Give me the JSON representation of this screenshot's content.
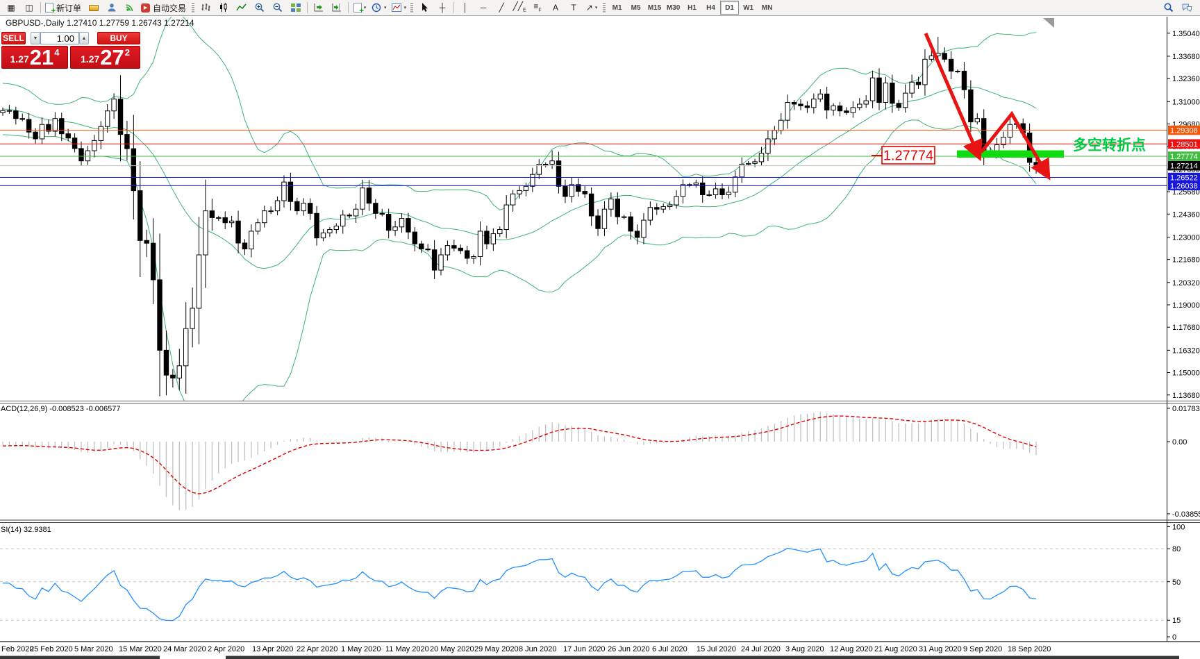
{
  "toolbar": {
    "new_order_label": "新订单",
    "autotrading_label": "自动交易",
    "timeframes": [
      "M1",
      "M5",
      "M15",
      "M30",
      "H1",
      "H4",
      "D1",
      "W1",
      "MN"
    ],
    "active_timeframe": "D1"
  },
  "trade_panel": {
    "symbol_title": "GBPUSD-,Daily  1.27410 1.27759 1.26743 1.27214",
    "sell_label": "SELL",
    "buy_label": "BUY",
    "volume": "1.00",
    "sell_price_prefix": "1.27",
    "sell_price_big": "21",
    "sell_price_sup": "4",
    "buy_price_prefix": "1.27",
    "buy_price_big": "27",
    "buy_price_sup": "2"
  },
  "price_axis": {
    "gridline_labels": [
      "1.35040",
      "1.33680",
      "1.32360",
      "1.31000",
      "1.29680",
      "1.28360",
      "1.27000",
      "1.25680",
      "1.24360",
      "1.23000",
      "1.21680",
      "1.20320",
      "1.19000",
      "1.17680",
      "1.16320",
      "1.15000",
      "1.13680"
    ],
    "plates": [
      {
        "text": "1.29308",
        "bg": "#f4560a"
      },
      {
        "text": "1.28501",
        "bg": "#ee1212"
      },
      {
        "text": "1.27774",
        "bg": "#41bc41"
      },
      {
        "text": "1.27214",
        "bg": "#000000"
      },
      {
        "text": "1.26522",
        "bg": "#1717d9"
      },
      {
        "text": "1.26038",
        "bg": "#1717d9"
      }
    ]
  },
  "hlines": [
    {
      "price": 1.29308,
      "color": "#f4560a"
    },
    {
      "price": 1.28501,
      "color": "#ee1212"
    },
    {
      "price": 1.27774,
      "color": "#41bc41"
    },
    {
      "price": 1.27214,
      "color": "#c6c6c6"
    },
    {
      "price": 1.26522,
      "color": "#1717d9"
    },
    {
      "price": 1.26038,
      "color": "#1717d9"
    }
  ],
  "annotations": {
    "callout_text": "1.27774",
    "turning_point_text": "多空转折点",
    "arrow_color": "#e81414",
    "support_bar_color": "#0fdc0f",
    "turning_point_color": "#00cc44",
    "callout_color": "#e40000"
  },
  "macd": {
    "label": "ACD(12,26,9) -0.008523 -0.006577",
    "axis_labels": [
      "0.017833",
      "0.00",
      "-0.038559"
    ]
  },
  "rsi": {
    "label": "SI(14) 32.9381",
    "axis_labels": [
      "100",
      "80",
      "50",
      "15",
      "0"
    ],
    "levels": [
      80,
      50,
      15
    ]
  },
  "date_axis": {
    "labels": [
      "Feb 2020",
      "25 Feb 2020",
      "5 Mar 2020",
      "15 Mar 2020",
      "24 Mar 2020",
      "2 Apr 2020",
      "13 Apr 2020",
      "22 Apr 2020",
      "1 May 2020",
      "11 May 2020",
      "20 May 2020",
      "29 May 2020",
      "8 Jun 2020",
      "17 Jun 2020",
      "26 Jun 2020",
      "6 Jul 2020",
      "15 Jul 2020",
      "24 Jul 2020",
      "3 Aug 2020",
      "12 Aug 2020",
      "21 Aug 2020",
      "31 Aug 2020",
      "9 Sep 2020",
      "18 Sep 2020"
    ]
  },
  "chart_data": {
    "type": "candlestick",
    "symbol": "GBPUSD-",
    "period": "Daily",
    "title_ohlc": {
      "open": "1.27410",
      "high": "1.27759",
      "low": "1.26743",
      "close": "1.27214"
    },
    "visible_range": [
      "13 Feb 2020",
      "22 Sep 2020"
    ],
    "ylim": [
      1.133,
      1.3645
    ],
    "pre_closes": [
      1.32,
      1.3165,
      1.312,
      1.3095,
      1.306,
      1.3105,
      1.314,
      1.311,
      1.3085,
      1.305,
      1.302,
      1.299,
      1.3015,
      1.304,
      1.308,
      1.306,
      1.3025,
      1.2995,
      1.296,
      1.3,
      1.3045,
      1.309,
      1.312,
      1.315,
      1.318,
      1.321,
      1.316,
      1.3105,
      1.3055,
      1.301,
      1.2975,
      1.2945,
      1.298,
      1.3025,
      1.307,
      1.304,
      1.2995,
      1.2955,
      1.298,
      1.3035
    ],
    "closes": [
      1.3047,
      1.3045,
      1.3,
      1.2995,
      1.292,
      1.288,
      1.2965,
      1.2925,
      1.3,
      1.291,
      1.2885,
      1.2823,
      1.275,
      1.281,
      1.287,
      1.2953,
      1.3045,
      1.3115,
      1.2906,
      1.2822,
      1.2574,
      1.228,
      1.2264,
      1.2048,
      1.1632,
      1.1485,
      1.1468,
      1.154,
      1.176,
      1.188,
      1.2195,
      1.2455,
      1.2415,
      1.2415,
      1.2385,
      1.2395,
      1.2265,
      1.223,
      1.2335,
      1.2385,
      1.2455,
      1.2455,
      1.2515,
      1.2625,
      1.251,
      1.2455,
      1.25,
      1.244,
      1.2295,
      1.2325,
      1.2345,
      1.2365,
      1.243,
      1.2425,
      1.2465,
      1.259,
      1.25,
      1.244,
      1.2435,
      1.234,
      1.236,
      1.241,
      1.233,
      1.226,
      1.223,
      1.2225,
      1.2105,
      1.2195,
      1.225,
      1.2235,
      1.222,
      1.2175,
      1.2185,
      1.2335,
      1.226,
      1.232,
      1.2345,
      1.249,
      1.2555,
      1.2575,
      1.26,
      1.267,
      1.273,
      1.273,
      1.275,
      1.26,
      1.254,
      1.261,
      1.257,
      1.2555,
      1.2425,
      1.235,
      1.2465,
      1.2525,
      1.242,
      1.242,
      1.2335,
      1.2298,
      1.24,
      1.2475,
      1.2465,
      1.248,
      1.249,
      1.254,
      1.261,
      1.261,
      1.262,
      1.255,
      1.255,
      1.2585,
      1.255,
      1.2565,
      1.2655,
      1.273,
      1.2735,
      1.2745,
      1.2795,
      1.288,
      1.293,
      1.299,
      1.3095,
      1.3085,
      1.3075,
      1.3065,
      1.3115,
      1.3145,
      1.305,
      1.3075,
      1.3045,
      1.3035,
      1.3065,
      1.3085,
      1.3105,
      1.324,
      1.3095,
      1.321,
      1.309,
      1.3065,
      1.315,
      1.3215,
      1.32,
      1.335,
      1.337,
      1.3385,
      1.335,
      1.328,
      1.328,
      1.317,
      1.298,
      1.3,
      1.28,
      1.2795,
      1.2845,
      1.289,
      1.2965,
      1.297,
      1.2915,
      1.2741,
      1.27214
    ],
    "last_candle": [
      1.2741,
      1.27759,
      1.26743,
      1.27214
    ],
    "wick_overrides": {
      "26": {
        "l": 1.1412
      },
      "84": {
        "h": 1.2812
      },
      "143": {
        "h": 1.3482
      },
      "154": {
        "h": 1.3007
      }
    },
    "indicators": {
      "bollinger": {
        "period": 20,
        "deviation": 2,
        "color": "#3cb371"
      },
      "macd": {
        "fast": 12,
        "slow": 26,
        "signal": 9,
        "histogram_color": "#c0c0c0",
        "signal_color": "#e00000"
      },
      "rsi": {
        "period": 14,
        "color": "#1e90ff"
      }
    }
  }
}
